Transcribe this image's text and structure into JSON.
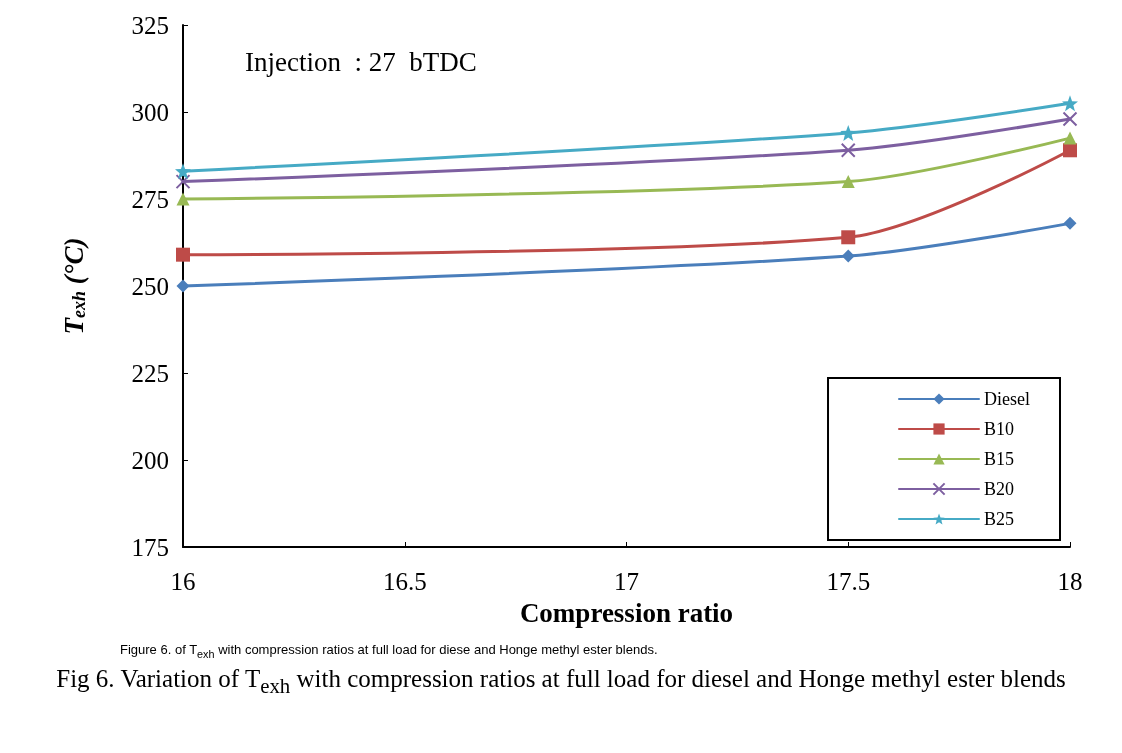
{
  "chart_data": {
    "type": "line",
    "xlabel": "Compression ratio",
    "ylabel": "T$_{exh}$ (°C)",
    "x": [
      16,
      17.5,
      18
    ],
    "xlim": [
      16,
      18
    ],
    "xticks": [
      16,
      16.5,
      17,
      17.5,
      18
    ],
    "ylim": [
      175,
      325
    ],
    "yticks": [
      175,
      200,
      225,
      250,
      275,
      300,
      325
    ],
    "grid": false,
    "legend": "bottom right",
    "line_style": "solid",
    "series": [
      {
        "name": "Diesel",
        "color": "#4a7ebb",
        "marker": "diamond",
        "values": [
          250,
          258.6,
          268
        ]
      },
      {
        "name": "B10",
        "color": "#be4b48",
        "marker": "square",
        "values": [
          259,
          264,
          289
        ]
      },
      {
        "name": "B15",
        "color": "#98b954",
        "marker": "triangle",
        "values": [
          275,
          280,
          292.5
        ]
      },
      {
        "name": "B20",
        "color": "#7d5fa0",
        "marker": "cross",
        "values": [
          280,
          289,
          298
        ]
      },
      {
        "name": "B25",
        "color": "#46aac5",
        "marker": "star",
        "values": [
          283,
          294,
          302.5
        ]
      }
    ],
    "annotations": [
      "Injection  : 27  bTDC",
      "Figure 6.            of T$_{exh}$ with compression ratios at full load for diese and Honge methyl ester blends.",
      "Fig 6. Variation of T$_{exh}$ with compression ratios at full load for diesel and Honge methyl ester blends"
    ]
  }
}
